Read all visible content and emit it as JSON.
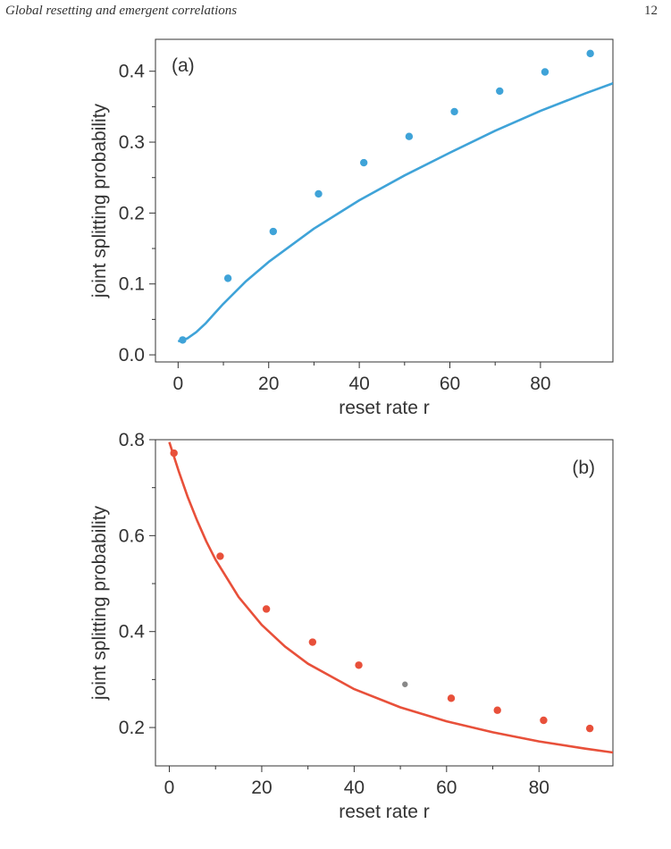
{
  "header": {
    "title": "Global resetting and emergent correlations",
    "page_number": "12"
  },
  "chart_data": [
    {
      "panel_label": "(a)",
      "type": "scatter",
      "xlabel": "reset rate r",
      "ylabel": "joint splitting probability",
      "xlim": [
        -5,
        96
      ],
      "ylim": [
        -0.01,
        0.445
      ],
      "xticks": [
        0,
        20,
        40,
        60,
        80
      ],
      "yticks": [
        0.0,
        0.1,
        0.2,
        0.3,
        0.4
      ],
      "ytick_labels": [
        "0.0",
        "0.1",
        "0.2",
        "0.3",
        "0.4"
      ],
      "color": "#3fa3d8",
      "points": {
        "x": [
          1,
          11,
          21,
          31,
          41,
          51,
          61,
          71,
          81,
          91
        ],
        "y": [
          0.021,
          0.108,
          0.174,
          0.227,
          0.271,
          0.308,
          0.343,
          0.372,
          0.399,
          0.425
        ]
      },
      "curve": {
        "x": [
          0,
          2,
          4,
          6,
          8,
          10,
          15,
          20,
          30,
          40,
          50,
          60,
          70,
          80,
          90,
          96
        ],
        "y": [
          0.019,
          0.023,
          0.032,
          0.044,
          0.058,
          0.072,
          0.104,
          0.131,
          0.178,
          0.218,
          0.253,
          0.285,
          0.316,
          0.344,
          0.369,
          0.383
        ]
      }
    },
    {
      "panel_label": "(b)",
      "type": "scatter",
      "xlabel": "reset rate r",
      "ylabel": "joint splitting probability",
      "xlim": [
        -3,
        96
      ],
      "ylim": [
        0.12,
        0.8
      ],
      "xticks": [
        0,
        20,
        40,
        60,
        80
      ],
      "yticks": [
        0.2,
        0.4,
        0.6,
        0.8
      ],
      "ytick_labels": [
        "0.2",
        "0.4",
        "0.6",
        "0.8"
      ],
      "color": "#e8503a",
      "highlight_color": "#888888",
      "points": {
        "x": [
          1,
          11,
          21,
          31,
          41,
          51,
          61,
          71,
          81,
          91
        ],
        "y": [
          0.772,
          0.557,
          0.447,
          0.378,
          0.33,
          0.29,
          0.261,
          0.236,
          0.215,
          0.198
        ]
      },
      "highlight_index": 5,
      "curve": {
        "x": [
          0,
          2,
          4,
          6,
          8,
          10,
          15,
          20,
          25,
          30,
          40,
          50,
          60,
          70,
          80,
          90,
          96
        ],
        "y": [
          0.795,
          0.735,
          0.68,
          0.632,
          0.588,
          0.55,
          0.472,
          0.414,
          0.369,
          0.333,
          0.28,
          0.242,
          0.213,
          0.19,
          0.171,
          0.156,
          0.148
        ]
      }
    }
  ]
}
